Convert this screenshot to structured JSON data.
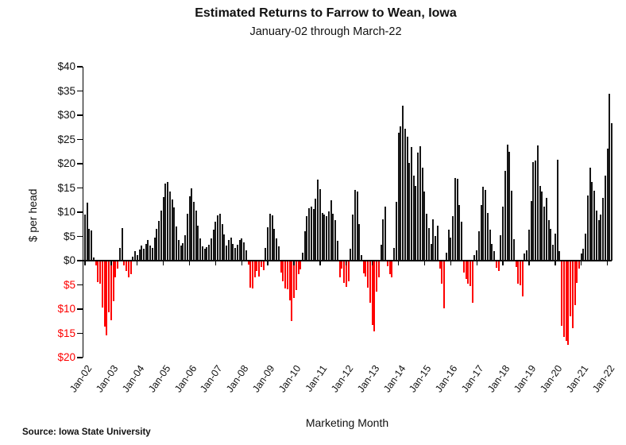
{
  "page": {
    "source_note": "Source: Iowa State University"
  },
  "chart_data": {
    "type": "bar",
    "title": "Estimated Returns to Farrow to Wean, Iowa",
    "subtitle": "January-02 through March-22",
    "xlabel": "Marketing Month",
    "ylabel": "$ per head",
    "ylim": [
      -20,
      40
    ],
    "ytick_step": 5,
    "grid": false,
    "legend": "none",
    "positive_color": "#161616",
    "negative_color": "#fe0000",
    "negative_label_color": "#fe0000",
    "ytick_labels": [
      "$40",
      "$35",
      "$30",
      "$25",
      "$20",
      "$15",
      "$10",
      "$5",
      "$0",
      "$5",
      "$10",
      "$15",
      "$20"
    ],
    "xtick_labels": [
      "Jan-02",
      "Jan-03",
      "Jan-04",
      "Jan-05",
      "Jan-06",
      "Jan-07",
      "Jan-08",
      "Jan-09",
      "Jan-10",
      "Jan-11",
      "Jan-12",
      "Jan-13",
      "Jan-14",
      "Jan-15",
      "Jan-16",
      "Jan-17",
      "Jan-18",
      "Jan-19",
      "Jan-20",
      "Jan-21",
      "Jan-22"
    ],
    "start_month": "Jan-02",
    "end_month": "Mar-22",
    "values": [
      9.5,
      12.0,
      6.5,
      6.3,
      0.7,
      -0.8,
      -4.3,
      -4.6,
      -9.6,
      -13.5,
      -15.3,
      -10.6,
      -12.2,
      -8.2,
      -3.3,
      -1.6,
      2.6,
      6.7,
      -0.9,
      -2.1,
      -3.4,
      -2.7,
      0.9,
      1.9,
      1.1,
      2.3,
      3.1,
      2.4,
      3.4,
      4.2,
      3.1,
      2.6,
      4.7,
      6.6,
      8.2,
      10.4,
      13.1,
      15.9,
      16.2,
      14.3,
      12.6,
      11.0,
      7.1,
      4.3,
      3.1,
      3.6,
      5.2,
      9.7,
      13.2,
      14.9,
      12.1,
      10.3,
      7.2,
      4.6,
      2.9,
      2.4,
      2.8,
      3.3,
      4.6,
      6.4,
      8.1,
      9.4,
      9.7,
      7.6,
      5.4,
      3.1,
      4.3,
      4.7,
      3.4,
      2.6,
      3.2,
      4.3,
      4.6,
      3.7,
      2.1,
      -0.7,
      -5.4,
      -5.6,
      -3.4,
      -2.1,
      -3.2,
      -1.2,
      -1.8,
      2.6,
      6.9,
      9.6,
      9.4,
      6.6,
      4.6,
      2.9,
      -2.4,
      -4.1,
      -5.6,
      -5.8,
      -8.1,
      -12.4,
      -7.6,
      -5.9,
      -2.6,
      -1.7,
      1.6,
      6.1,
      9.1,
      10.9,
      11.2,
      10.7,
      12.8,
      16.8,
      14.8,
      9.8,
      9.5,
      9.1,
      10.2,
      12.4,
      9.7,
      8.4,
      4.1,
      -3.4,
      -1.6,
      -4.4,
      -5.3,
      -4.1,
      2.4,
      9.5,
      14.6,
      14.2,
      7.5,
      1.2,
      -2.5,
      -3.1,
      -5.5,
      -8.6,
      -13.1,
      -14.4,
      -6.2,
      -3.3,
      3.3,
      8.5,
      11.1,
      -1.1,
      -2.7,
      -3.3,
      2.6,
      12.1,
      26.4,
      27.7,
      31.9,
      27.2,
      25.6,
      20.2,
      23.4,
      17.6,
      15.4,
      22.3,
      23.6,
      19.2,
      14.2,
      9.6,
      6.7,
      3.4,
      8.6,
      5.1,
      7.2,
      -1.5,
      -4.7,
      -9.8,
      1.6,
      6.4,
      4.7,
      9.2,
      17.1,
      16.9,
      11.4,
      8.1,
      -2.4,
      -3.6,
      -4.6,
      -5.2,
      -8.5,
      1.2,
      2.1,
      6.1,
      11.4,
      15.2,
      14.6,
      9.9,
      6.4,
      3.4,
      1.9,
      -1.4,
      -2.1,
      5.2,
      11.2,
      18.5,
      23.9,
      22.5,
      14.5,
      4.5,
      -1.2,
      -4.7,
      -4.9,
      -7.3,
      1.4,
      2.1,
      6.4,
      12.3,
      20.4,
      20.6,
      23.8,
      15.4,
      14.2,
      11.2,
      12.9,
      8.4,
      6.6,
      3.2,
      5.5,
      20.9,
      2.0,
      -13.4,
      -15.6,
      -16.4,
      -17.2,
      -11.3,
      -13.9,
      -9.1,
      -4.4,
      -1.5,
      1.5,
      2.5,
      5.5,
      13.5,
      19.2,
      16.3,
      14.5,
      10.4,
      8.3,
      9.5,
      13.0,
      17.5,
      23.1,
      34.5,
      28.3
    ]
  }
}
